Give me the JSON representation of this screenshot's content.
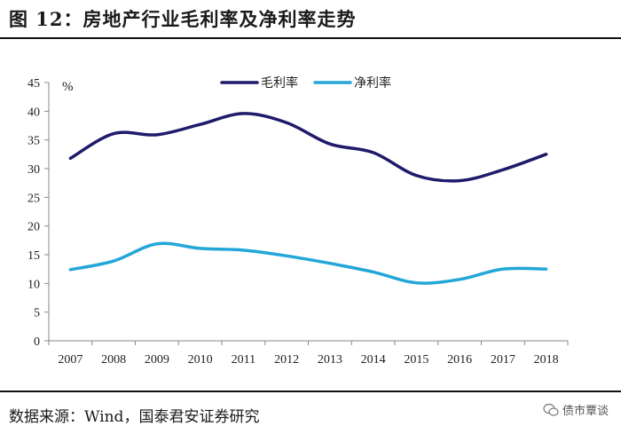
{
  "figure": {
    "title": "图  12：房地产行业毛利率及净利率走势",
    "source": "数据来源：Wind，国泰君安证券研究",
    "watermark": "债市覃谈"
  },
  "chart_data": {
    "type": "line",
    "title": "",
    "ylabel": "%",
    "xlabel": "",
    "ylim": [
      0,
      45
    ],
    "yticks": [
      0,
      5,
      10,
      15,
      20,
      25,
      30,
      35,
      40,
      45
    ],
    "categories": [
      "2007",
      "2008",
      "2009",
      "2010",
      "2011",
      "2012",
      "2013",
      "2014",
      "2015",
      "2016",
      "2017",
      "2018"
    ],
    "series": [
      {
        "name": "毛利率",
        "color": "#1f1b6b",
        "values": [
          31.8,
          36.1,
          35.9,
          37.7,
          39.6,
          38.0,
          34.3,
          32.8,
          28.8,
          27.9,
          29.8,
          32.5
        ]
      },
      {
        "name": "净利率",
        "color": "#22a7d8",
        "values": [
          12.4,
          13.9,
          16.9,
          16.1,
          15.8,
          14.8,
          13.5,
          12.0,
          10.1,
          10.7,
          12.5,
          12.5
        ]
      }
    ],
    "legend": "top-center",
    "grid": false
  }
}
